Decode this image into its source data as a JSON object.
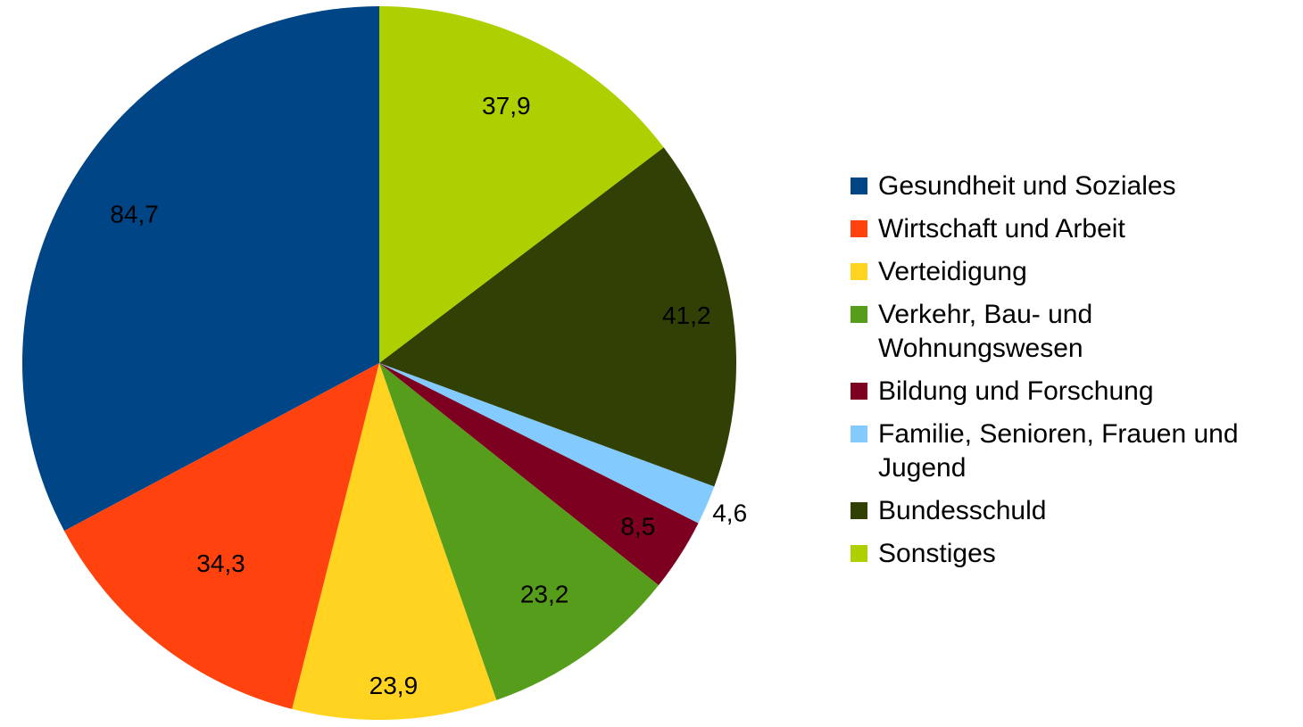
{
  "chart_data": {
    "type": "pie",
    "start": "12 o'clock",
    "direction": "counter-clockwise",
    "legend_position": "right",
    "slices": [
      {
        "label": "Gesundheit und Soziales",
        "value": 84.7,
        "value_text": "84,7",
        "color": "#004586"
      },
      {
        "label": "Wirtschaft und Arbeit",
        "value": 34.3,
        "value_text": "34,3",
        "color": "#ff420e"
      },
      {
        "label": "Verteidigung",
        "value": 23.9,
        "value_text": "23,9",
        "color": "#ffd320"
      },
      {
        "label": "Verkehr, Bau- und Wohnungswesen",
        "value": 23.2,
        "value_text": "23,2",
        "color": "#579d1c"
      },
      {
        "label": "Bildung und Forschung",
        "value": 8.5,
        "value_text": "8,5",
        "color": "#7e0021"
      },
      {
        "label": "Familie, Senioren, Frauen und Jugend",
        "value": 4.6,
        "value_text": "4,6",
        "color": "#83caff"
      },
      {
        "label": "Bundesschuld",
        "value": 41.2,
        "value_text": "41,2",
        "color": "#314004"
      },
      {
        "label": "Sonstiges",
        "value": 37.9,
        "value_text": "37,9",
        "color": "#aecf00"
      }
    ]
  }
}
